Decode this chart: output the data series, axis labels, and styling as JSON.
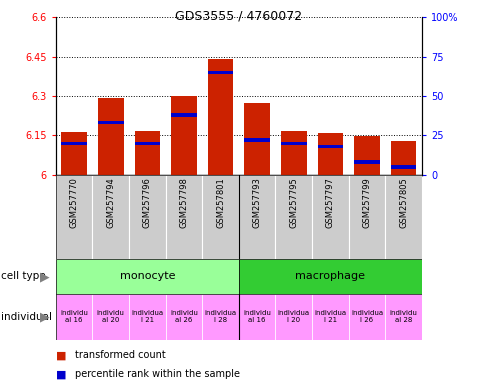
{
  "title": "GDS3555 / 4760072",
  "samples": [
    "GSM257770",
    "GSM257794",
    "GSM257796",
    "GSM257798",
    "GSM257801",
    "GSM257793",
    "GSM257795",
    "GSM257797",
    "GSM257799",
    "GSM257805"
  ],
  "transformed_counts": [
    6.163,
    6.292,
    6.168,
    6.3,
    6.44,
    6.275,
    6.165,
    6.16,
    6.148,
    6.128
  ],
  "percentile_ranks": [
    20,
    33,
    20,
    38,
    65,
    22,
    20,
    18,
    8,
    5
  ],
  "ylim_left": [
    6.0,
    6.6
  ],
  "ylim_right": [
    0,
    100
  ],
  "yticks_left": [
    6.0,
    6.15,
    6.3,
    6.45,
    6.6
  ],
  "yticks_right": [
    0,
    25,
    50,
    75,
    100
  ],
  "ytick_labels_left": [
    "6",
    "6.15",
    "6.3",
    "6.45",
    "6.6"
  ],
  "ytick_labels_right": [
    "0",
    "25",
    "50",
    "75",
    "100%"
  ],
  "monocyte_color": "#99ff99",
  "macrophage_color": "#33cc33",
  "individual_bg_color": "#ff99ff",
  "sample_bg_color": "#cccccc",
  "bar_color_red": "#cc2200",
  "bar_color_blue": "#0000cc",
  "bar_width": 0.7,
  "base_value": 6.0,
  "legend_red": "transformed count",
  "legend_blue": "percentile rank within the sample",
  "indiv_labels": [
    "individu\nal 16",
    "individu\nal 20",
    "individua\nl 21",
    "individu\nal 26",
    "individua\nl 28",
    "individu\nal 16",
    "individua\nl 20",
    "individua\nl 21",
    "individua\nl 26",
    "individu\nal 28"
  ]
}
